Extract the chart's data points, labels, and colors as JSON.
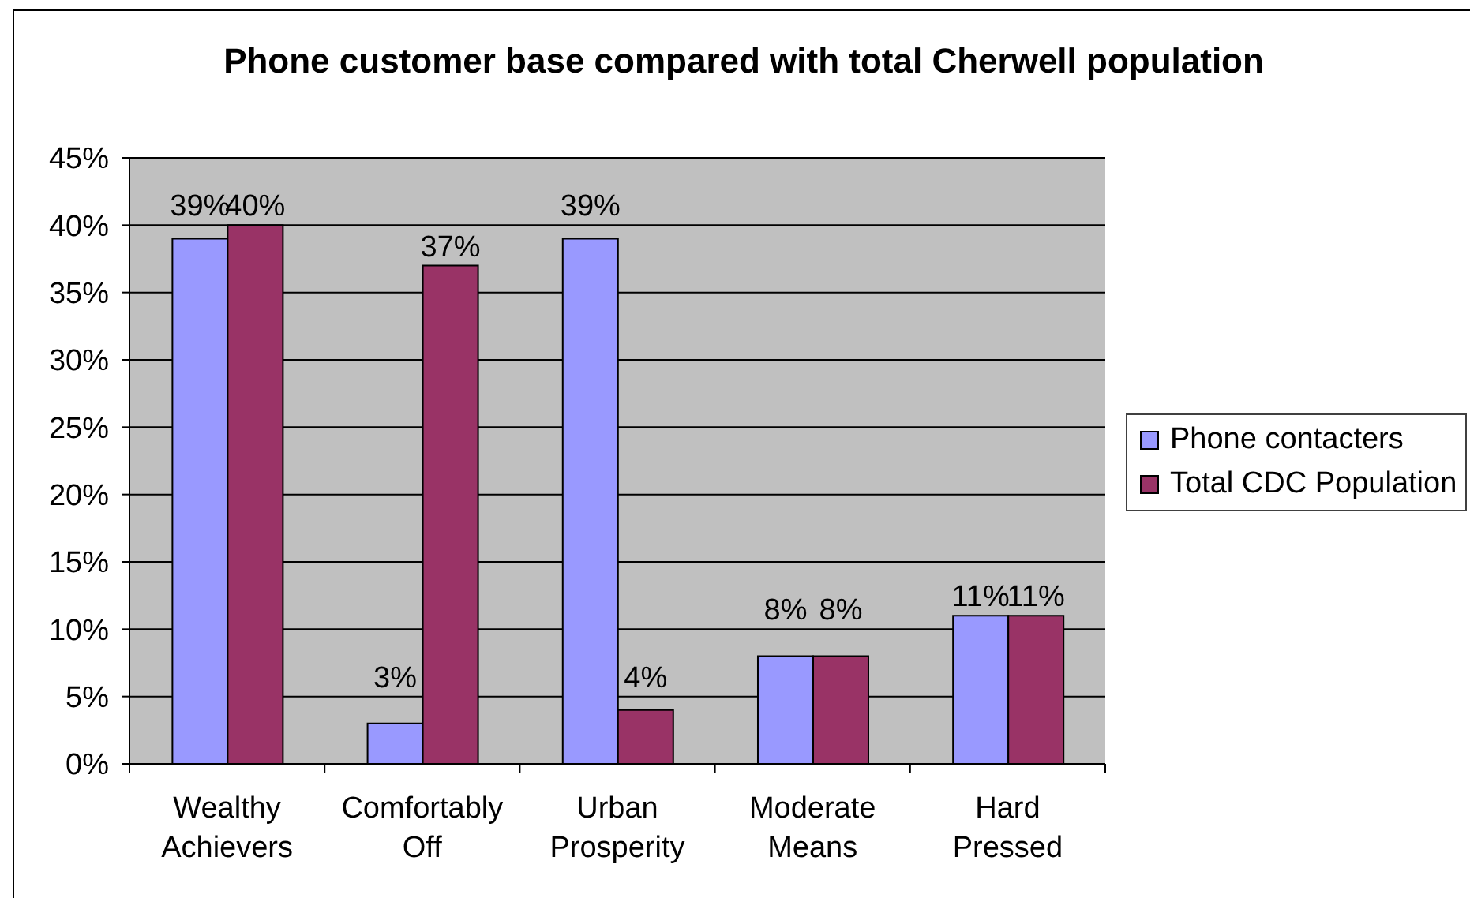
{
  "chart_data": {
    "type": "bar",
    "title": "Phone customer base compared with total Cherwell population",
    "categories": [
      "Wealthy Achievers",
      "Comfortably Off",
      "Urban Prosperity",
      "Moderate Means",
      "Hard Pressed"
    ],
    "series": [
      {
        "name": "Phone contacters",
        "color": "#9999ff",
        "values": [
          39,
          3,
          39,
          8,
          11
        ],
        "value_labels": [
          "39%",
          "3%",
          "39%",
          "8%",
          "11%"
        ]
      },
      {
        "name": "Total CDC Population",
        "color": "#993366",
        "values": [
          40,
          37,
          4,
          8,
          11
        ],
        "value_labels": [
          "40%",
          "37%",
          "4%",
          "8%",
          "11%"
        ]
      }
    ],
    "ylim": [
      0,
      45
    ],
    "yticks": [
      {
        "value": 0,
        "label": "0%"
      },
      {
        "value": 5,
        "label": "5%"
      },
      {
        "value": 10,
        "label": "10%"
      },
      {
        "value": 15,
        "label": "15%"
      },
      {
        "value": 20,
        "label": "20%"
      },
      {
        "value": 25,
        "label": "25%"
      },
      {
        "value": 30,
        "label": "30%"
      },
      {
        "value": 35,
        "label": "35%"
      },
      {
        "value": 40,
        "label": "40%"
      },
      {
        "value": 45,
        "label": "45%"
      }
    ],
    "grid": "y",
    "legend": "right"
  }
}
